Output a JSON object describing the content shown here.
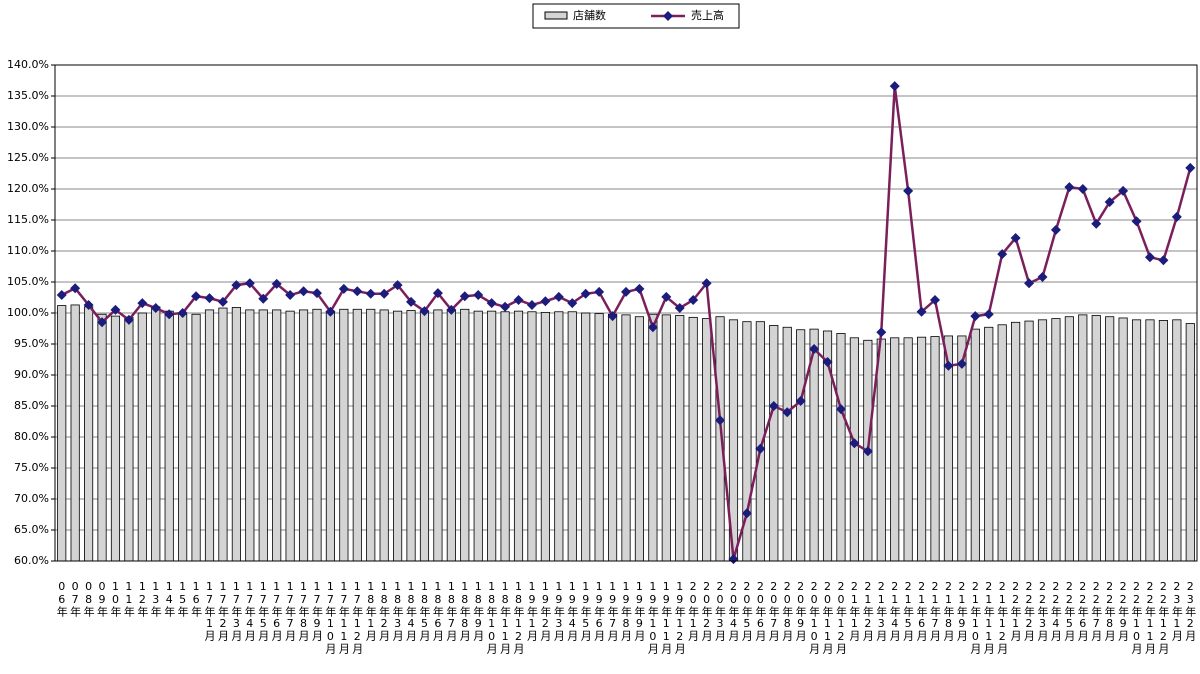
{
  "chart_data": {
    "type": "combo",
    "categories": [
      "06年",
      "07年",
      "08年",
      "09年",
      "10年",
      "11年",
      "12年",
      "13年",
      "14年",
      "15年",
      "16年",
      "17年1月",
      "17年2月",
      "17年3月",
      "17年4月",
      "17年5月",
      "17年6月",
      "17年7月",
      "17年8月",
      "17年9月",
      "17年10月",
      "17年11月",
      "17年12月",
      "18年1月",
      "18年2月",
      "18年3月",
      "18年4月",
      "18年5月",
      "18年6月",
      "18年7月",
      "18年8月",
      "18年9月",
      "18年10月",
      "18年11月",
      "18年12月",
      "19年1月",
      "19年2月",
      "19年3月",
      "19年4月",
      "19年5月",
      "19年6月",
      "19年7月",
      "19年8月",
      "19年9月",
      "19年10月",
      "19年11月",
      "19年12月",
      "20年1月",
      "20年2月",
      "20年3月",
      "20年4月",
      "20年5月",
      "20年6月",
      "20年7月",
      "20年8月",
      "20年9月",
      "20年10月",
      "20年11月",
      "20年12月",
      "21年1月",
      "21年2月",
      "21年3月",
      "21年4月",
      "21年5月",
      "21年6月",
      "21年7月",
      "21年8月",
      "21年9月",
      "21年10月",
      "21年11月",
      "21年12月",
      "22年1月",
      "22年2月",
      "22年3月",
      "22年4月",
      "22年5月",
      "22年6月",
      "22年7月",
      "22年8月",
      "22年9月",
      "22年10月",
      "22年11月",
      "22年12月",
      "23年1月",
      "23年2月"
    ],
    "series": [
      {
        "name": "店舗数",
        "type": "bar",
        "color": "#d4d4d4",
        "values": [
          101.2,
          101.3,
          101.0,
          99.8,
          99.5,
          99.3,
          100.0,
          101.0,
          100.3,
          99.8,
          99.8,
          100.5,
          100.8,
          100.9,
          100.5,
          100.5,
          100.5,
          100.3,
          100.5,
          100.6,
          100.3,
          100.6,
          100.6,
          100.6,
          100.5,
          100.3,
          100.4,
          100.3,
          100.5,
          100.4,
          100.6,
          100.3,
          100.3,
          100.2,
          100.3,
          100.2,
          100.1,
          100.2,
          100.2,
          100.0,
          99.9,
          99.8,
          99.7,
          99.4,
          99.8,
          99.7,
          99.6,
          99.3,
          99.1,
          99.4,
          98.9,
          98.6,
          98.6,
          98.0,
          97.7,
          97.3,
          97.4,
          97.1,
          96.7,
          96.0,
          95.6,
          95.8,
          96.0,
          96.0,
          96.1,
          96.2,
          96.3,
          96.3,
          97.4,
          97.7,
          98.1,
          98.5,
          98.7,
          98.9,
          99.1,
          99.4,
          99.7,
          99.6,
          99.4,
          99.2,
          98.9,
          98.9,
          98.8,
          98.9,
          98.3
        ]
      },
      {
        "name": "売上高",
        "type": "line",
        "color": "#7a1f5c",
        "marker_color": "#1c1c7c",
        "values": [
          102.9,
          104.0,
          101.3,
          98.5,
          100.5,
          98.9,
          101.6,
          100.8,
          99.8,
          100.0,
          102.7,
          102.4,
          101.8,
          104.5,
          104.8,
          102.3,
          104.7,
          102.9,
          103.5,
          103.2,
          100.2,
          103.9,
          103.5,
          103.1,
          103.1,
          104.5,
          101.8,
          100.3,
          103.2,
          100.5,
          102.7,
          102.9,
          101.6,
          101.0,
          102.1,
          101.3,
          101.9,
          102.6,
          101.6,
          103.1,
          103.4,
          99.5,
          103.4,
          103.9,
          97.7,
          102.6,
          100.8,
          102.1,
          104.8,
          82.7,
          60.3,
          67.7,
          78.1,
          85.0,
          84.0,
          85.8,
          94.2,
          92.1,
          84.5,
          79.0,
          77.7,
          96.9,
          136.6,
          119.7,
          100.2,
          102.1,
          91.5,
          91.8,
          99.5,
          99.8,
          109.5,
          112.1,
          104.8,
          105.8,
          113.4,
          120.3,
          120.0,
          114.4,
          117.9,
          119.7,
          114.8,
          109.0,
          108.5,
          115.5,
          123.4
        ]
      }
    ],
    "ylim": [
      60,
      140
    ],
    "yticks": [
      {
        "value": 60,
        "label": "60.0%"
      },
      {
        "value": 65,
        "label": "65.0%"
      },
      {
        "value": 70,
        "label": "70.0%"
      },
      {
        "value": 75,
        "label": "75.0%"
      },
      {
        "value": 80,
        "label": "80.0%"
      },
      {
        "value": 85,
        "label": "85.0%"
      },
      {
        "value": 90,
        "label": "90.0%"
      },
      {
        "value": 95,
        "label": "95.0%"
      },
      {
        "value": 100,
        "label": "100.0%"
      },
      {
        "value": 105,
        "label": "105.0%"
      },
      {
        "value": 110,
        "label": "110.0%"
      },
      {
        "value": 115,
        "label": "115.0%"
      },
      {
        "value": 120,
        "label": "120.0%"
      },
      {
        "value": 125,
        "label": "125.0%"
      },
      {
        "value": 130,
        "label": "130.0%"
      },
      {
        "value": 135,
        "label": "135.0%"
      },
      {
        "value": 140,
        "label": "140.0%"
      }
    ],
    "grid": true,
    "legend": "top"
  }
}
